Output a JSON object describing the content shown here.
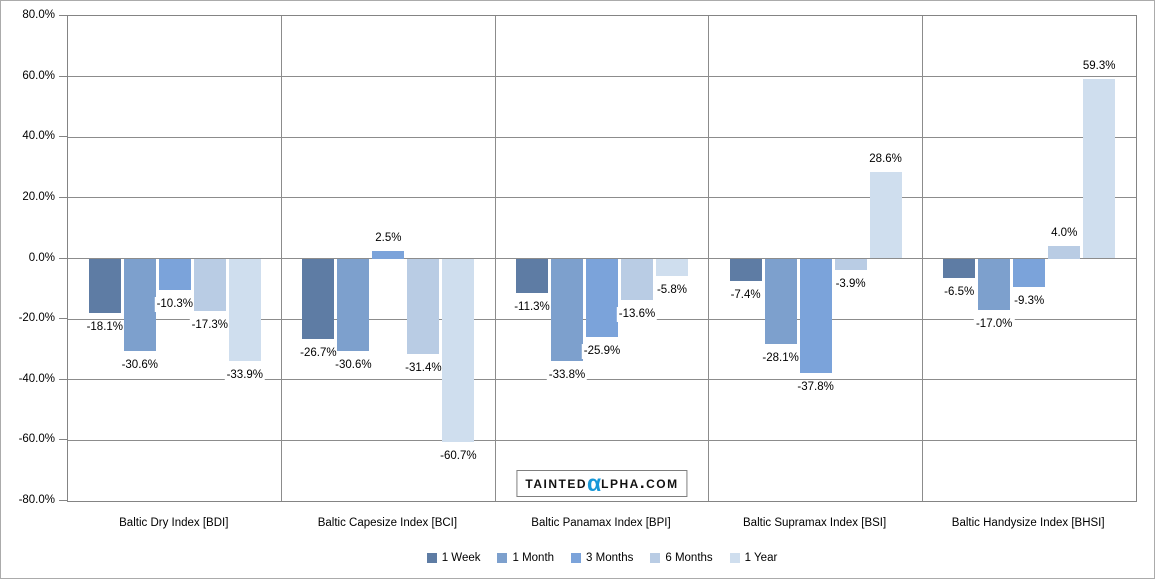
{
  "watermark": {
    "prefix": "Tainted",
    "alpha": "α",
    "suffix": "lpha.com",
    "alpha_color": "#1798d8"
  },
  "colors": {
    "gridline": "#8c8c8c",
    "plot_border": "#848484",
    "outer_border": "#ababab",
    "label_text": "#000000"
  },
  "chart_data": {
    "type": "bar",
    "title": "",
    "xlabel": "",
    "ylabel": "",
    "categories": [
      "Baltic Dry Index [BDI]",
      "Baltic Capesize Index [BCI]",
      "Baltic Panamax Index [BPI]",
      "Baltic Supramax Index [BSI]",
      "Baltic Handysize Index [BHSI]"
    ],
    "series": [
      {
        "name": "1 Week",
        "color": "#5e7ca4",
        "dotted": false,
        "values": [
          -18.1,
          -26.7,
          -11.3,
          -7.4,
          -6.5
        ]
      },
      {
        "name": "1 Month",
        "color": "#7da0cd",
        "dotted": true,
        "values": [
          -30.6,
          -30.6,
          -33.8,
          -28.1,
          -17.0
        ]
      },
      {
        "name": "3 Months",
        "color": "#7ba3da",
        "dotted": true,
        "values": [
          -10.3,
          2.5,
          -25.9,
          -37.8,
          -9.3
        ]
      },
      {
        "name": "6 Months",
        "color": "#b9cce4",
        "dotted": true,
        "values": [
          -17.3,
          -31.4,
          -13.6,
          -3.9,
          4.0
        ]
      },
      {
        "name": "1 Year",
        "color": "#cfdeee",
        "dotted": true,
        "values": [
          -33.9,
          -60.7,
          -5.8,
          28.6,
          59.3
        ]
      }
    ],
    "ylim": [
      -80,
      80
    ],
    "ytick_step": 20,
    "yticks": {
      "values": [
        80,
        60,
        40,
        20,
        0,
        -20,
        -40,
        -60,
        -80
      ],
      "labels": [
        "80.0%",
        "60.0%",
        "40.0%",
        "20.0%",
        "0.0%",
        "-20.0%",
        "-40.0%",
        "-60.0%",
        "-80.0%"
      ]
    },
    "data_label_format": "0.0%",
    "grid": true,
    "legend_position": "bottom"
  }
}
